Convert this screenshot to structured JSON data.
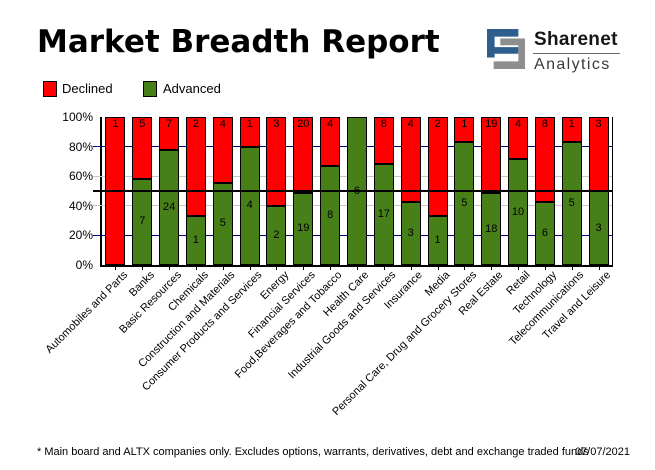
{
  "header": {
    "title": "Market Breadth Report",
    "logo": {
      "name": "Sharenet",
      "subtitle": "Analytics",
      "blue": "#2e5e8e",
      "gray": "#8e8e8e"
    }
  },
  "legend": [
    {
      "label": "Declined",
      "color": "#ff0000"
    },
    {
      "label": "Advanced",
      "color": "#478018"
    }
  ],
  "chart_data": {
    "type": "bar",
    "stacked": true,
    "normalized": "percent",
    "title": "Market Breadth Report",
    "categories": [
      "Automobiles and Parts",
      "Banks",
      "Basic Resources",
      "Chemicals",
      "Construction and Materials",
      "Consumer Products and Services",
      "Energy",
      "Financial Services",
      "Food,Beverages and Tobacco",
      "Health Care",
      "Industrial Goods and Services",
      "Insurance",
      "Media",
      "Personal Care, Drug and Grocery Stores",
      "Real Estate",
      "Retail",
      "Technology",
      "Telecommunications",
      "Travel and Leisure"
    ],
    "series": [
      {
        "name": "Declined",
        "color": "#ff0000",
        "values": [
          1,
          5,
          7,
          2,
          4,
          1,
          3,
          20,
          4,
          0,
          8,
          4,
          2,
          1,
          19,
          4,
          8,
          1,
          3
        ]
      },
      {
        "name": "Advanced",
        "color": "#478018",
        "values": [
          0,
          7,
          24,
          1,
          5,
          4,
          2,
          19,
          8,
          6,
          17,
          3,
          1,
          5,
          18,
          10,
          6,
          5,
          3
        ]
      }
    ],
    "ylim": [
      0,
      100
    ],
    "yticks": [
      {
        "pct": 0,
        "label": "0%"
      },
      {
        "pct": 20,
        "label": "20%"
      },
      {
        "pct": 40,
        "label": "40%"
      },
      {
        "pct": 60,
        "label": "60%"
      },
      {
        "pct": 80,
        "label": "80%"
      },
      {
        "pct": 100,
        "label": "100%"
      }
    ],
    "gridlines": [
      {
        "pct": 20,
        "color": "#000080"
      },
      {
        "pct": 40,
        "color": "#c6c6c6"
      },
      {
        "pct": 60,
        "color": "#c6c6c6"
      },
      {
        "pct": 80,
        "color": "#000080"
      }
    ],
    "reference_line": {
      "pct": 50,
      "color": "#000000"
    },
    "legend_position": "top-left",
    "grid": true
  },
  "footer": {
    "note": "* Main board and ALTX companies only. Excludes options, warrants, derivatives, debt and exchange traded funds",
    "date": "07/07/2021"
  }
}
